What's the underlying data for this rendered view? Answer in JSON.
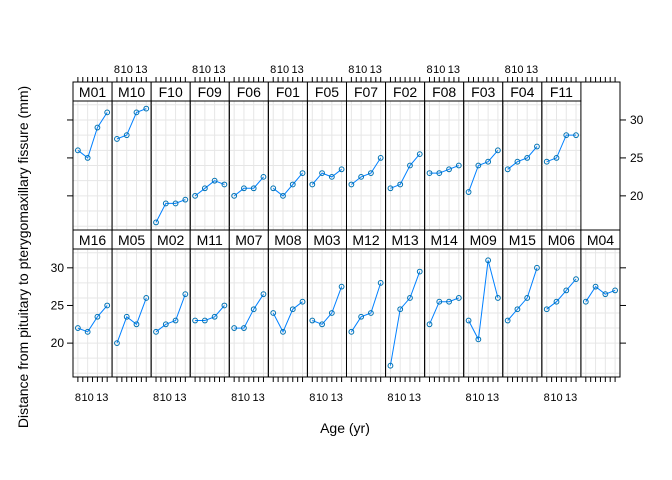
{
  "chart_data": {
    "type": "line",
    "title": "",
    "xlabel": "Age (yr)",
    "ylabel": "Distance from pituitary to pterygomaxillary fissure (mm)",
    "x": [
      8,
      10,
      12,
      14
    ],
    "xticks": [
      8,
      10,
      13
    ],
    "xtick_labels": [
      "8",
      "10",
      "13"
    ],
    "xlim": [
      7,
      15
    ],
    "ylim": [
      15.5,
      32.5
    ],
    "yticks": [
      20,
      25,
      30
    ],
    "ytick_labels": [
      "20",
      "25",
      "30"
    ],
    "grid": true,
    "colors": {
      "line": "#0080ff",
      "point": "#0072b2",
      "strip_bg": "#ffffff",
      "grid": "#e6e6e6",
      "frame": "#000000"
    },
    "rows": [
      {
        "row": "top",
        "panels": [
          {
            "name": "M01",
            "values": [
              26,
              25,
              29,
              31
            ]
          },
          {
            "name": "M10",
            "values": [
              27.5,
              28,
              31,
              31.5
            ]
          },
          {
            "name": "F10",
            "values": [
              16.5,
              19,
              19,
              19.5
            ]
          },
          {
            "name": "F09",
            "values": [
              20,
              21,
              22,
              21.5
            ]
          },
          {
            "name": "F06",
            "values": [
              20,
              21,
              21,
              22.5
            ]
          },
          {
            "name": "F01",
            "values": [
              21,
              20,
              21.5,
              23
            ]
          },
          {
            "name": "F05",
            "values": [
              21.5,
              23,
              22.5,
              23.5
            ]
          },
          {
            "name": "F07",
            "values": [
              21.5,
              22.5,
              23,
              25
            ]
          },
          {
            "name": "F02",
            "values": [
              21,
              21.5,
              24,
              25.5
            ]
          },
          {
            "name": "F08",
            "values": [
              23,
              23,
              23.5,
              24
            ]
          },
          {
            "name": "F03",
            "values": [
              20.5,
              24,
              24.5,
              26
            ]
          },
          {
            "name": "F04",
            "values": [
              23.5,
              24.5,
              25,
              26.5
            ]
          },
          {
            "name": "F11",
            "values": [
              24.5,
              25,
              28,
              28
            ]
          }
        ]
      },
      {
        "row": "bottom",
        "panels": [
          {
            "name": "M16",
            "values": [
              22,
              21.5,
              23.5,
              25
            ]
          },
          {
            "name": "M05",
            "values": [
              20,
              23.5,
              22.5,
              26
            ]
          },
          {
            "name": "M02",
            "values": [
              21.5,
              22.5,
              23,
              26.5
            ]
          },
          {
            "name": "M11",
            "values": [
              23,
              23,
              23.5,
              25
            ]
          },
          {
            "name": "M07",
            "values": [
              22,
              22,
              24.5,
              26.5
            ]
          },
          {
            "name": "M08",
            "values": [
              24,
              21.5,
              24.5,
              25.5
            ]
          },
          {
            "name": "M03",
            "values": [
              23,
              22.5,
              24,
              27.5
            ]
          },
          {
            "name": "M12",
            "values": [
              21.5,
              23.5,
              24,
              28
            ]
          },
          {
            "name": "M13",
            "values": [
              17,
              24.5,
              26,
              29.5
            ]
          },
          {
            "name": "M14",
            "values": [
              22.5,
              25.5,
              25.5,
              26
            ]
          },
          {
            "name": "M09",
            "values": [
              23,
              20.5,
              31,
              26
            ]
          },
          {
            "name": "M15",
            "values": [
              23,
              24.5,
              26,
              30
            ]
          },
          {
            "name": "M06",
            "values": [
              24.5,
              25.5,
              27,
              28.5
            ]
          },
          {
            "name": "M04",
            "values": [
              25.5,
              27.5,
              26.5,
              27
            ]
          }
        ]
      }
    ]
  }
}
